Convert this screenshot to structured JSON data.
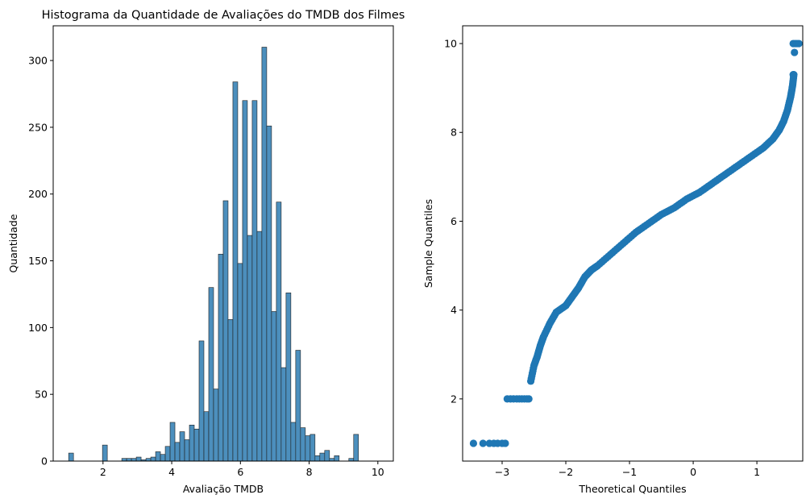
{
  "chart_data": [
    {
      "type": "bar",
      "subtype": "histogram",
      "title": "Histograma da Quantidade de Avaliações do TMDB dos Filmes",
      "xlabel": "Avaliação TMDB",
      "ylabel": "Quantidade",
      "xlim": [
        0.55,
        10.45
      ],
      "ylim": [
        0,
        326
      ],
      "xticks": [
        2,
        4,
        6,
        8,
        10
      ],
      "yticks": [
        0,
        50,
        100,
        150,
        200,
        250,
        300
      ],
      "bin_start": 1.0,
      "bin_width": 0.1406,
      "color": "#4c8fbd",
      "edgecolor": "#1f1f1f",
      "values": [
        6,
        0,
        0,
        0,
        0,
        0,
        0,
        12,
        0,
        0,
        0,
        2,
        2,
        2,
        3,
        1,
        2,
        3,
        7,
        5,
        11,
        29,
        14,
        22,
        16,
        27,
        24,
        90,
        37,
        130,
        54,
        155,
        195,
        106,
        284,
        148,
        270,
        169,
        270,
        172,
        310,
        251,
        112,
        194,
        70,
        126,
        29,
        83,
        25,
        19,
        20,
        4,
        6,
        8,
        2,
        4,
        0,
        0,
        2,
        20
      ],
      "grid": false
    },
    {
      "type": "scatter",
      "title": "",
      "xlabel": "Theoretical Quantiles",
      "ylabel": "Sample Quantiles",
      "xlim": [
        -3.62,
        1.72
      ],
      "ylim": [
        0.6,
        10.4
      ],
      "xticks": [
        -3,
        -2,
        -1,
        0,
        1
      ],
      "yticks": [
        2,
        4,
        6,
        8,
        10
      ],
      "color": "#1f77b4",
      "grid": false,
      "curve_points": [
        [
          -2.55,
          2.4
        ],
        [
          -2.5,
          2.75
        ],
        [
          -2.45,
          2.95
        ],
        [
          -2.4,
          3.2
        ],
        [
          -2.35,
          3.4
        ],
        [
          -2.25,
          3.7
        ],
        [
          -2.15,
          3.95
        ],
        [
          -2.0,
          4.1
        ],
        [
          -1.9,
          4.3
        ],
        [
          -1.8,
          4.5
        ],
        [
          -1.7,
          4.75
        ],
        [
          -1.6,
          4.9
        ],
        [
          -1.5,
          5.0
        ],
        [
          -1.3,
          5.25
        ],
        [
          -1.1,
          5.5
        ],
        [
          -0.9,
          5.75
        ],
        [
          -0.7,
          5.95
        ],
        [
          -0.5,
          6.15
        ],
        [
          -0.3,
          6.3
        ],
        [
          -0.1,
          6.5
        ],
        [
          0.1,
          6.65
        ],
        [
          0.3,
          6.85
        ],
        [
          0.5,
          7.05
        ],
        [
          0.7,
          7.25
        ],
        [
          0.9,
          7.45
        ],
        [
          1.1,
          7.65
        ],
        [
          1.25,
          7.85
        ],
        [
          1.35,
          8.05
        ],
        [
          1.42,
          8.25
        ],
        [
          1.48,
          8.5
        ],
        [
          1.53,
          8.8
        ],
        [
          1.56,
          9.05
        ],
        [
          1.58,
          9.3
        ]
      ],
      "points": [
        [
          -3.45,
          1.0
        ],
        [
          -3.3,
          1.0
        ],
        [
          -3.2,
          1.0
        ],
        [
          -3.13,
          1.0
        ],
        [
          -3.07,
          1.0
        ],
        [
          -3.0,
          1.0
        ],
        [
          -2.95,
          1.0
        ],
        [
          -2.92,
          2.0
        ],
        [
          -2.87,
          2.0
        ],
        [
          -2.82,
          2.0
        ],
        [
          -2.77,
          2.0
        ],
        [
          -2.73,
          2.0
        ],
        [
          -2.69,
          2.0
        ],
        [
          -2.65,
          2.0
        ],
        [
          -2.61,
          2.0
        ],
        [
          -2.58,
          2.0
        ],
        [
          1.57,
          9.3
        ],
        [
          1.59,
          9.8
        ],
        [
          1.57,
          10.0
        ],
        [
          1.6,
          10.0
        ],
        [
          1.63,
          10.0
        ],
        [
          1.66,
          10.0
        ]
      ]
    }
  ]
}
